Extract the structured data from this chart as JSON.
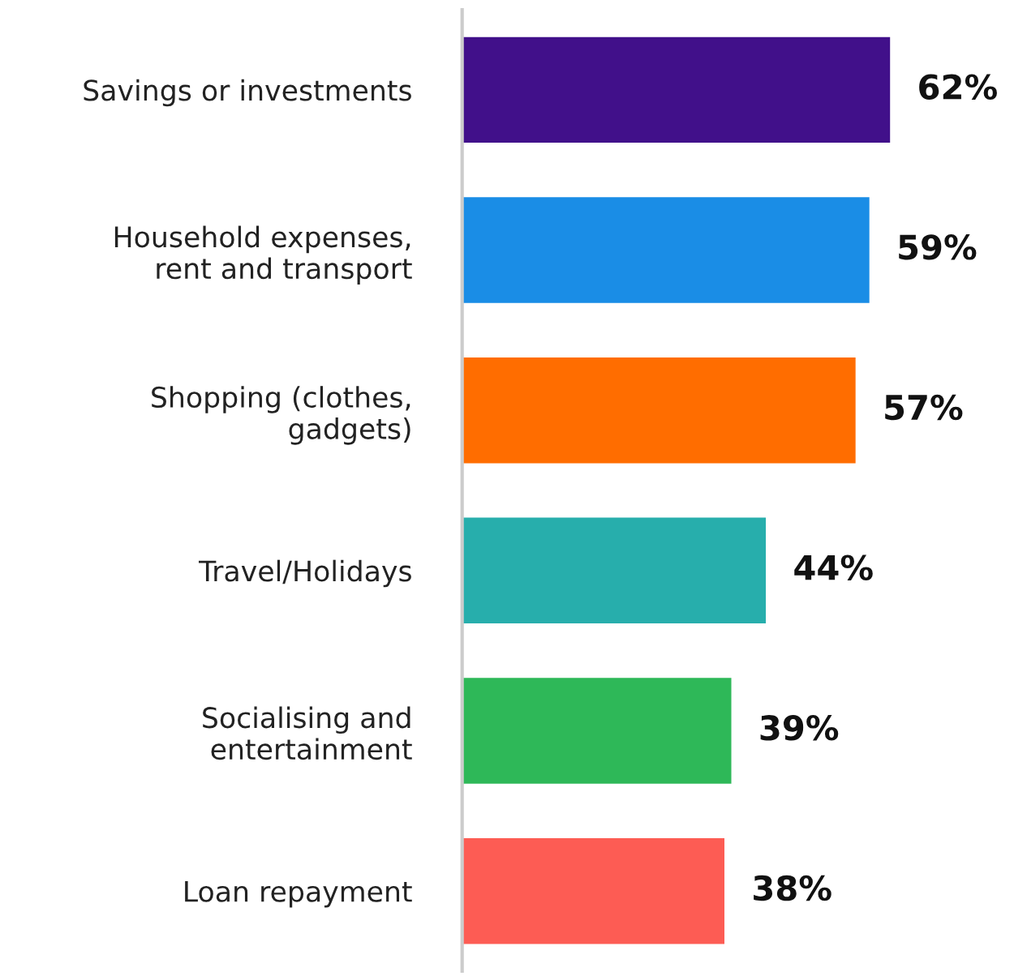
{
  "chart_data": {
    "type": "bar",
    "orientation": "horizontal",
    "categories": [
      "Savings or investments",
      "Household expenses,\nrent and transport",
      "Shopping (clothes,\ngadgets)",
      "Travel/Holidays",
      "Socialising and\nentertainment",
      "Loan repayment"
    ],
    "values": [
      62,
      59,
      57,
      44,
      39,
      38
    ],
    "colors": [
      "#41108a",
      "#1a8de6",
      "#ff6d00",
      "#27aeac",
      "#2eb858",
      "#fd5c54"
    ],
    "value_labels": [
      "62%",
      "59%",
      "57%",
      "44%",
      "39%",
      "38%"
    ],
    "grid": false,
    "legend": false
  }
}
